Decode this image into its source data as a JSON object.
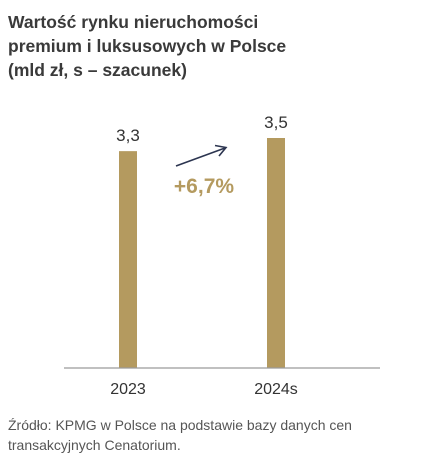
{
  "title_lines": [
    "Wartość rynku nieruchomości",
    "premium i luksusowych w Polsce",
    "(mld zł, s – szacunek)"
  ],
  "source_lines": [
    "Źródło: KPMG w Polsce na podstawie bazy danych cen",
    "transakcyjnych Cenatorium."
  ],
  "colors": {
    "bar": "#b49a5f",
    "growth_text": "#b49a5f",
    "arrow": "#2c3550",
    "axis": "#9a9a9a",
    "label": "#333333"
  },
  "chart_data": {
    "type": "bar",
    "categories": [
      "2023",
      "2024s"
    ],
    "values": [
      3.3,
      3.5
    ],
    "value_labels": [
      "3,3",
      "3,5"
    ],
    "annotation": "+6,7%",
    "title": "Wartość rynku nieruchomości premium i luksusowych w Polsce (mld zł, s – szacunek)",
    "xlabel": "",
    "ylabel": "",
    "ylim": [
      0,
      3.5
    ],
    "grid": false,
    "legend": "none"
  }
}
